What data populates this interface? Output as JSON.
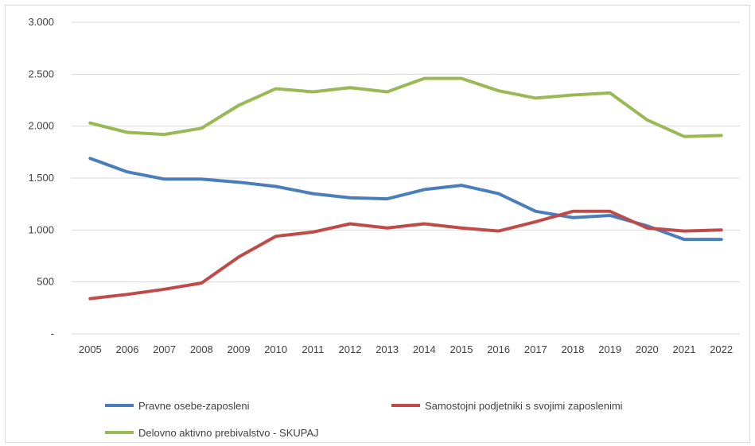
{
  "chart_data": {
    "type": "line",
    "title": "",
    "xlabel": "",
    "ylabel": "",
    "x": [
      "2005",
      "2006",
      "2007",
      "2008",
      "2009",
      "2010",
      "2011",
      "2012",
      "2013",
      "2014",
      "2015",
      "2016",
      "2017",
      "2018",
      "2019",
      "2020",
      "2021",
      "2022"
    ],
    "ylim": [
      0,
      3000
    ],
    "yticks": [
      0,
      500,
      1000,
      1500,
      2000,
      2500,
      3000
    ],
    "ytick_labels": [
      "-",
      "500",
      "1.000",
      "1.500",
      "2.000",
      "2.500",
      "3.000"
    ],
    "grid": true,
    "legend_position": "bottom",
    "series": [
      {
        "name": "Pravne osebe-zaposleni",
        "color": "#4a7ebb",
        "values": [
          1690,
          1560,
          1490,
          1490,
          1460,
          1420,
          1350,
          1310,
          1300,
          1390,
          1430,
          1350,
          1180,
          1120,
          1140,
          1040,
          910,
          910
        ]
      },
      {
        "name": "Samostojni podjetniki s svojimi zaposlenimi",
        "color": "#be4b48",
        "values": [
          340,
          380,
          430,
          490,
          740,
          940,
          980,
          1060,
          1020,
          1060,
          1020,
          990,
          1080,
          1180,
          1180,
          1020,
          990,
          1000
        ]
      },
      {
        "name": "Delovno aktivno prebivalstvo - SKUPAJ",
        "color": "#98b954",
        "values": [
          2030,
          1940,
          1920,
          1980,
          2200,
          2360,
          2330,
          2370,
          2330,
          2460,
          2460,
          2340,
          2270,
          2300,
          2320,
          2060,
          1900,
          1910
        ]
      }
    ]
  }
}
